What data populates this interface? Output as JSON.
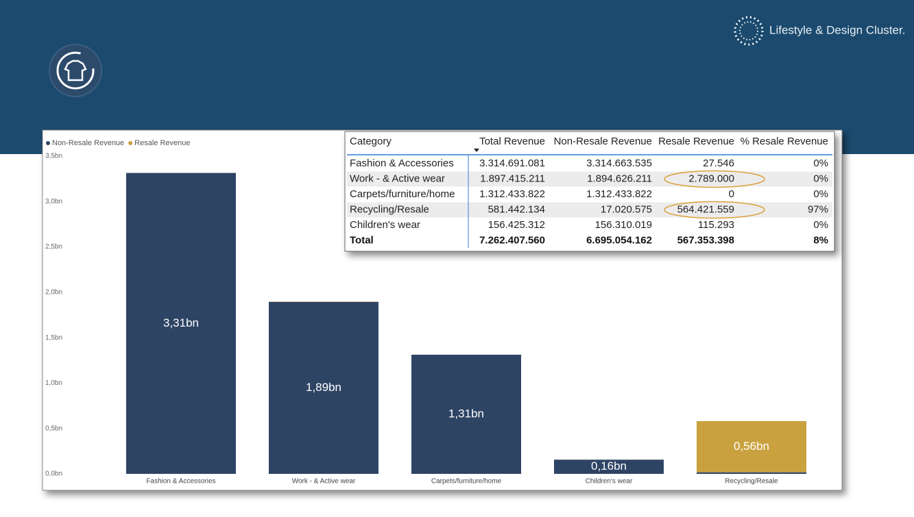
{
  "logo": "Lifestyle & Design Cluster.",
  "chart_data": {
    "type": "stacked-bar",
    "categories": [
      "Fashion & Accessories",
      "Work - & Active wear",
      "Carpets/furniture/home",
      "Children's wear",
      "Recycling/Resale"
    ],
    "series": [
      {
        "name": "Non-Resale Revenue",
        "color": "#2e4464",
        "values": [
          3.314663535,
          1.894626211,
          1.312433822,
          0.156310019,
          0.017020575
        ],
        "value_labels": [
          "3,31bn",
          "1,89bn",
          "1,31bn",
          "0,16bn",
          null
        ]
      },
      {
        "name": "Resale Revenue",
        "color": "#c9a13f",
        "values": [
          2.7546e-05,
          0.002789,
          0,
          0.000115293,
          0.564421559
        ],
        "value_labels": [
          null,
          null,
          null,
          null,
          "0,56bn"
        ]
      }
    ],
    "ylim": [
      0,
      3.5
    ],
    "yticks": [
      {
        "value": 0,
        "label": "0,0bn"
      },
      {
        "value": 0.5,
        "label": "0,5bn"
      },
      {
        "value": 1,
        "label": "1,0bn"
      },
      {
        "value": 1.5,
        "label": "1,5bn"
      },
      {
        "value": 2,
        "label": "2,0bn"
      },
      {
        "value": 2.5,
        "label": "2,5bn"
      },
      {
        "value": 3,
        "label": "3,0bn"
      },
      {
        "value": 3.5,
        "label": "3,5bn"
      }
    ],
    "grid": false,
    "legend": "top-left"
  },
  "table": {
    "columns": [
      "Category",
      "Total Revenue",
      "Non-Resale Revenue",
      "Resale Revenue",
      "% Resale Revenue"
    ],
    "rows": [
      [
        "Fashion & Accessories",
        "3.314.691.081",
        "3.314.663.535",
        "27.546",
        "0%"
      ],
      [
        "Work - & Active wear",
        "1.897.415.211",
        "1.894.626.211",
        "2.789.000",
        "0%"
      ],
      [
        "Carpets/furniture/home",
        "1.312.433.822",
        "1.312.433.822",
        "0",
        "0%"
      ],
      [
        "Recycling/Resale",
        "581.442.134",
        "17.020.575",
        "564.421.559",
        "97%"
      ],
      [
        "Children's wear",
        "156.425.312",
        "156.310.019",
        "115.293",
        "0%"
      ]
    ],
    "total": [
      "Total",
      "7.262.407.560",
      "6.695.054.162",
      "567.353.398",
      "8%"
    ]
  }
}
